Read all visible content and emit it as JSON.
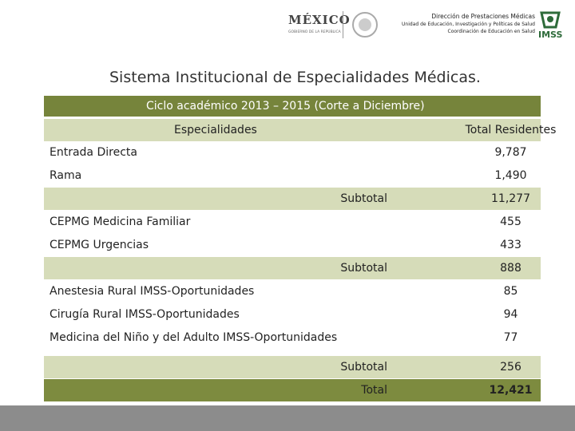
{
  "header": {
    "mexico": "MÉXICO",
    "gobierno": "GOBIERNO DE LA REPÚBLICA",
    "imss": "IMSS",
    "lines": [
      "Dirección de Prestaciones Médicas",
      "Unidad de Educación, Investigación y Políticas de Salud",
      "Coordinación de Educación en Salud"
    ]
  },
  "title": "Sistema Institucional de Especialidades Médicas.",
  "table": {
    "caption": "Ciclo académico 2013 – 2015 (Corte a Diciembre)",
    "columns": [
      "Especialidades",
      "Total Residentes"
    ],
    "groups": [
      {
        "rows": [
          [
            "Entrada Directa",
            "9,787"
          ],
          [
            "Rama",
            "1,490"
          ]
        ],
        "subtotal": [
          "Subtotal",
          "11,277"
        ]
      },
      {
        "rows": [
          [
            "CEPMG Medicina Familiar",
            "455"
          ],
          [
            "CEPMG Urgencias",
            "433"
          ]
        ],
        "subtotal": [
          "Subtotal",
          "888"
        ]
      },
      {
        "rows": [
          [
            "Anestesia Rural IMSS-Oportunidades",
            "85"
          ],
          [
            "Cirugía Rural IMSS-Oportunidades",
            "94"
          ],
          [
            "Medicina del Niño y del Adulto IMSS-Oportunidades",
            "77"
          ]
        ],
        "subtotal": [
          "Subtotal",
          "256"
        ]
      }
    ],
    "total": [
      "Total",
      "12,421"
    ]
  }
}
